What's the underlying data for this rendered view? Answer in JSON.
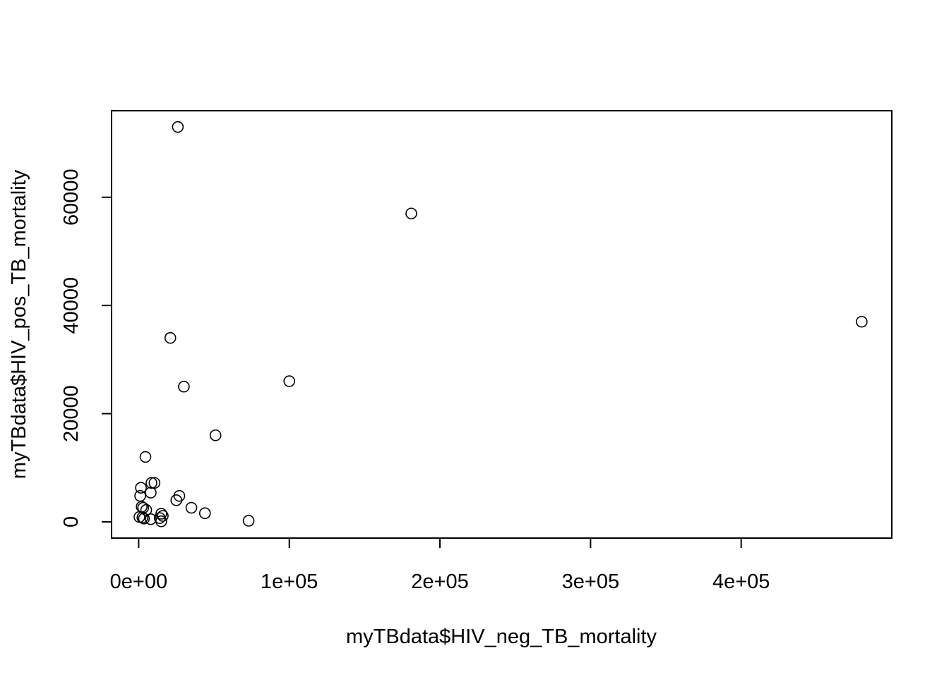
{
  "chart_data": {
    "type": "scatter",
    "title": "",
    "xlabel": "myTBdata$HIV_neg_TB_mortality",
    "ylabel": "myTBdata$HIV_pos_TB_mortality",
    "xlim": [
      -18000,
      500000
    ],
    "ylim": [
      -3000,
      76000
    ],
    "x_ticks": [
      0,
      100000,
      200000,
      300000,
      400000
    ],
    "x_tick_labels": [
      "0e+00",
      "1e+05",
      "2e+05",
      "3e+05",
      "4e+05"
    ],
    "y_ticks": [
      0,
      20000,
      40000,
      60000
    ],
    "y_tick_labels": [
      "0",
      "20000",
      "40000",
      "60000"
    ],
    "marker": "open-circle",
    "grid": false,
    "legend": "none",
    "points": [
      {
        "x": 26000,
        "y": 73000
      },
      {
        "x": 181000,
        "y": 57000
      },
      {
        "x": 480000,
        "y": 37000
      },
      {
        "x": 21000,
        "y": 34000
      },
      {
        "x": 30000,
        "y": 25000
      },
      {
        "x": 100000,
        "y": 26000
      },
      {
        "x": 51000,
        "y": 16000
      },
      {
        "x": 4500,
        "y": 12000
      },
      {
        "x": 8500,
        "y": 7200
      },
      {
        "x": 10500,
        "y": 7200
      },
      {
        "x": 1500,
        "y": 6300
      },
      {
        "x": 8000,
        "y": 5400
      },
      {
        "x": 1000,
        "y": 4800
      },
      {
        "x": 27000,
        "y": 4800
      },
      {
        "x": 25000,
        "y": 4000
      },
      {
        "x": 2000,
        "y": 2800
      },
      {
        "x": 3000,
        "y": 2600
      },
      {
        "x": 5000,
        "y": 2200
      },
      {
        "x": 35000,
        "y": 2600
      },
      {
        "x": 44000,
        "y": 1600
      },
      {
        "x": 15000,
        "y": 1500
      },
      {
        "x": 16000,
        "y": 1100
      },
      {
        "x": 14000,
        "y": 700
      },
      {
        "x": 500,
        "y": 900
      },
      {
        "x": 2500,
        "y": 800
      },
      {
        "x": 3500,
        "y": 600
      },
      {
        "x": 8000,
        "y": 500
      },
      {
        "x": 15000,
        "y": 100
      },
      {
        "x": 73000,
        "y": 200
      }
    ]
  }
}
